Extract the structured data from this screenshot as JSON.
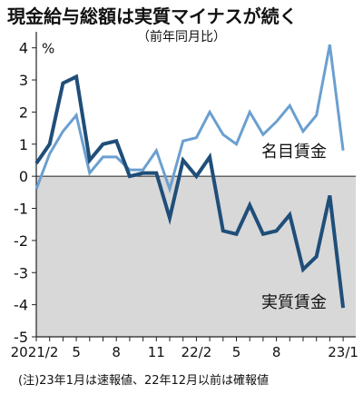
{
  "title": "現金給与総額は実質マイナスが続く",
  "subtitle": "（前年同月比）",
  "note": "(注)23年1月は速報値、22年12月以前は確報値",
  "chart_data": {
    "type": "line",
    "unit": "%",
    "ylim": [
      -5,
      4.5
    ],
    "yticks": [
      "4",
      "3",
      "2",
      "1",
      "0",
      "-1",
      "-2",
      "-3",
      "-4",
      "-5"
    ],
    "negative_region_shaded": true,
    "x_tick_labels": [
      {
        "index": 0,
        "label": "2021/2"
      },
      {
        "index": 3,
        "label": "5"
      },
      {
        "index": 6,
        "label": "8"
      },
      {
        "index": 9,
        "label": "11"
      },
      {
        "index": 12,
        "label": "22/2"
      },
      {
        "index": 15,
        "label": "5"
      },
      {
        "index": 18,
        "label": "8"
      },
      {
        "index": 23,
        "label": "23/1"
      }
    ],
    "series": [
      {
        "name": "名目賃金",
        "color": "#6b9fd0",
        "values": [
          -0.4,
          0.7,
          1.4,
          1.9,
          0.1,
          0.6,
          0.6,
          0.2,
          0.2,
          0.8,
          -0.4,
          1.1,
          1.2,
          2.0,
          1.3,
          1.0,
          2.0,
          1.3,
          1.7,
          2.2,
          1.4,
          1.9,
          4.1,
          0.8
        ]
      },
      {
        "name": "実質賃金",
        "color": "#1f4e79",
        "values": [
          0.4,
          1.0,
          2.9,
          3.1,
          0.5,
          1.0,
          1.1,
          0.0,
          0.1,
          0.1,
          -1.3,
          0.5,
          0.0,
          0.6,
          -1.7,
          -1.8,
          -0.9,
          -1.8,
          -1.7,
          -1.2,
          -2.9,
          -2.5,
          -0.6,
          -4.1
        ]
      }
    ]
  }
}
